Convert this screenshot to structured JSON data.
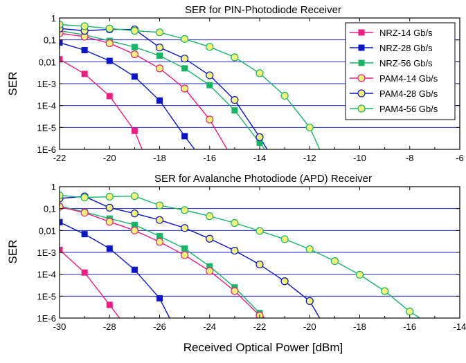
{
  "shared_xlabel": "Received Optical Power [dBm]",
  "colors": {
    "nrz14": "#ee1b82",
    "nrz28": "#0a14c8",
    "nrz56": "#18b466",
    "pam14": "#ee1b82",
    "pam28": "#0a14c8",
    "pam56": "#18b466",
    "marker_fill_yellow": "#f2f57a",
    "gridline": "#1c22d0"
  },
  "chart_data": [
    {
      "type": "line",
      "title": "SER for PIN-Photodiode Receiver",
      "xlabel": "",
      "ylabel": "SER",
      "xlim": [
        -22,
        -6
      ],
      "ylim": [
        1e-06,
        1
      ],
      "yscale": "log",
      "xticks": [
        "-22",
        "-20",
        "-18",
        "-16",
        "-14",
        "-12",
        "-10",
        "-8",
        "-6"
      ],
      "yticks": [
        "1E-6",
        "1E-5",
        "1E-4",
        "1E-3",
        "0,01",
        "0,1",
        "1"
      ],
      "grid": "horizontal",
      "legend": "top-right",
      "series": [
        {
          "name": "NRZ-14 Gb/s",
          "marker": "square",
          "x": [
            -22,
            -21,
            -20,
            -19
          ],
          "y": [
            0.013,
            0.0028,
            0.00027,
            7e-06
          ],
          "tail": [
            -18.7,
            1e-06
          ]
        },
        {
          "name": "NRZ-28 Gb/s",
          "marker": "square",
          "x": [
            -22,
            -21,
            -20,
            -19,
            -18,
            -17
          ],
          "y": [
            0.075,
            0.034,
            0.011,
            0.0021,
            0.00017,
            4e-06
          ],
          "tail": [
            -16.6,
            1e-06
          ]
        },
        {
          "name": "NRZ-56 Gb/s",
          "marker": "square",
          "x": [
            -22,
            -21,
            -20,
            -19,
            -18,
            -17,
            -16,
            -15,
            -14
          ],
          "y": [
            0.26,
            0.17,
            0.09,
            0.047,
            0.019,
            0.005,
            0.00085,
            6e-05,
            2e-06
          ],
          "tail": [
            -13.8,
            1e-06
          ]
        },
        {
          "name": "PAM4-14 Gb/s",
          "marker": "circle",
          "x": [
            -22,
            -21,
            -20,
            -19,
            -18,
            -17,
            -16
          ],
          "y": [
            0.2,
            0.14,
            0.07,
            0.022,
            0.005,
            0.0006,
            2.3e-05
          ],
          "tail": [
            -15.3,
            1e-06
          ]
        },
        {
          "name": "PAM4-28 Gb/s",
          "marker": "circle",
          "x": [
            -22,
            -21,
            -20,
            -19,
            -18,
            -17,
            -16,
            -15,
            -14
          ],
          "y": [
            0.33,
            0.26,
            0.3,
            0.3,
            0.045,
            0.014,
            0.0024,
            0.00018,
            3.6e-06
          ],
          "tail": [
            -13.7,
            1e-06
          ]
        },
        {
          "name": "PAM4-56 Gb/s",
          "marker": "circle",
          "x": [
            -22,
            -21,
            -20,
            -19,
            -18,
            -17,
            -16,
            -15,
            -14,
            -13,
            -12
          ],
          "y": [
            0.5,
            0.42,
            0.33,
            0.26,
            0.22,
            0.11,
            0.048,
            0.016,
            0.003,
            0.00028,
            1e-05
          ],
          "tail": [
            -11.6,
            1e-06
          ]
        }
      ]
    },
    {
      "type": "line",
      "title": "SER for Avalanche Photodiode (APD) Receiver",
      "xlabel": "Received Optical Power [dBm]",
      "ylabel": "SER",
      "xlim": [
        -30,
        -14
      ],
      "ylim": [
        1e-06,
        1
      ],
      "yscale": "log",
      "xticks": [
        "-30",
        "-28",
        "-26",
        "-24",
        "-22",
        "-20",
        "-18",
        "-16",
        "-14"
      ],
      "yticks": [
        "1E-6",
        "1E-5",
        "1E-4",
        "1E-3",
        "0,01",
        "0,1",
        "1"
      ],
      "grid": "horizontal",
      "legend": "none",
      "series": [
        {
          "name": "NRZ-14 Gb/s",
          "marker": "square",
          "x": [
            -30,
            -29,
            -28
          ],
          "y": [
            0.0013,
            0.00012,
            4e-06
          ],
          "tail": [
            -27.6,
            1e-06
          ]
        },
        {
          "name": "NRZ-28 Gb/s",
          "marker": "square",
          "x": [
            -30,
            -29,
            -28,
            -27,
            -26
          ],
          "y": [
            0.024,
            0.0068,
            0.0015,
            0.00016,
            8e-06
          ],
          "tail": [
            -25.6,
            1e-06
          ]
        },
        {
          "name": "NRZ-56 Gb/s",
          "marker": "square",
          "x": [
            -30,
            -29,
            -28,
            -27,
            -26,
            -25,
            -24,
            -23,
            -22
          ],
          "y": [
            0.13,
            0.07,
            0.035,
            0.018,
            0.0055,
            0.0015,
            0.00023,
            2.5e-05,
            1.7e-06
          ],
          "tail": [
            -21.8,
            1e-06
          ]
        },
        {
          "name": "PAM4-14 Gb/s",
          "marker": "circle",
          "x": [
            -30,
            -29,
            -28,
            -27,
            -26,
            -25,
            -24,
            -23,
            -22
          ],
          "y": [
            0.12,
            0.065,
            0.025,
            0.01,
            0.003,
            0.00075,
            0.00014,
            1.7e-05,
            1.3e-06
          ],
          "tail": [
            -21.8,
            1e-06
          ]
        },
        {
          "name": "PAM4-28 Gb/s",
          "marker": "circle",
          "x": [
            -30,
            -29,
            -28,
            -27,
            -26,
            -25,
            -24,
            -23,
            -22,
            -21,
            -20
          ],
          "y": [
            0.29,
            0.36,
            0.11,
            0.06,
            0.03,
            0.013,
            0.0042,
            0.0012,
            0.00028,
            4.8e-05,
            6e-06
          ],
          "tail": [
            -19.6,
            1e-06
          ]
        },
        {
          "name": "PAM4-56 Gb/s",
          "marker": "circle",
          "x": [
            -30,
            -29,
            -28,
            -27,
            -26,
            -25,
            -24,
            -23,
            -22,
            -21,
            -20,
            -19,
            -18,
            -17,
            -16
          ],
          "y": [
            0.4,
            0.32,
            0.35,
            0.37,
            0.14,
            0.085,
            0.045,
            0.022,
            0.0095,
            0.004,
            0.0014,
            0.0004,
            9.5e-05,
            1.7e-05,
            2e-06
          ],
          "tail": [
            -15.6,
            1e-06
          ]
        }
      ]
    }
  ]
}
